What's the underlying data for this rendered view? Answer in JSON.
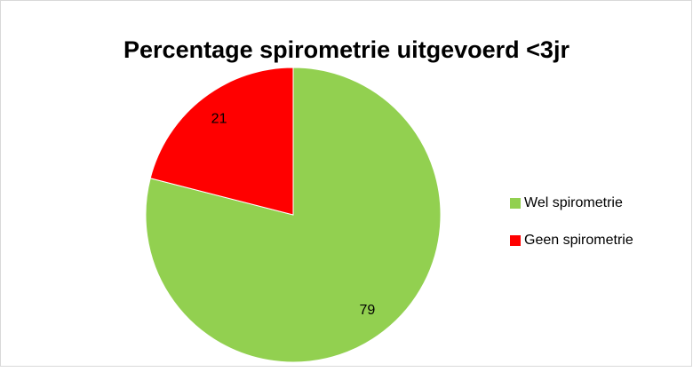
{
  "chart_data": {
    "type": "pie",
    "title": "Percentage spirometrie uitgevoerd <3jr",
    "categories": [
      "Wel spirometrie",
      "Geen spirometrie"
    ],
    "values": [
      79,
      21
    ],
    "colors": [
      "#92d050",
      "#ff0000"
    ],
    "legend": "right"
  }
}
